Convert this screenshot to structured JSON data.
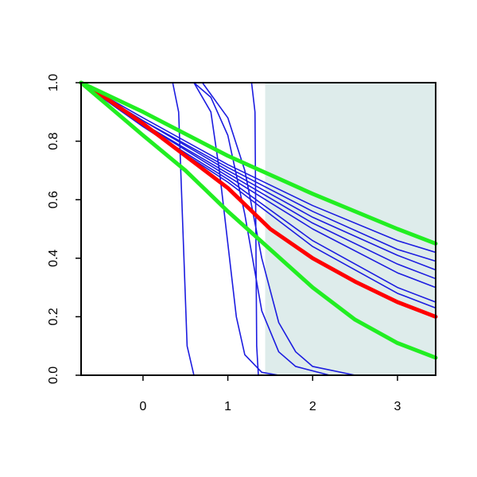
{
  "chart_data": {
    "type": "line",
    "xlim": [
      -0.73,
      3.45
    ],
    "ylim": [
      0,
      1
    ],
    "xticks": [
      0,
      1,
      2,
      3
    ],
    "yticks": [
      {
        "value": 0,
        "label": "0.0"
      },
      0.2,
      0.4,
      0.6,
      0.8,
      {
        "value": 1,
        "label": "1.0"
      }
    ],
    "shaded_xlim": [
      1.44,
      3.45
    ],
    "shade_color": "#deeceb",
    "series": [
      {
        "color": "#1c1ce0",
        "width": 1.6,
        "x": [
          -0.73,
          0,
          1,
          2,
          3,
          3.45
        ],
        "values": [
          1,
          0.88,
          0.72,
          0.58,
          0.46,
          0.42
        ]
      },
      {
        "color": "#1c1ce0",
        "width": 1.6,
        "x": [
          -0.73,
          0,
          1,
          2,
          3,
          3.45
        ],
        "values": [
          1,
          0.87,
          0.71,
          0.56,
          0.43,
          0.39
        ]
      },
      {
        "color": "#1c1ce0",
        "width": 1.6,
        "x": [
          -0.73,
          0,
          1,
          2,
          3,
          3.45
        ],
        "values": [
          1,
          0.87,
          0.7,
          0.54,
          0.41,
          0.36
        ]
      },
      {
        "color": "#1c1ce0",
        "width": 1.6,
        "x": [
          -0.73,
          0,
          1,
          2,
          3,
          3.45
        ],
        "values": [
          1,
          0.86,
          0.69,
          0.52,
          0.38,
          0.33
        ]
      },
      {
        "color": "#1c1ce0",
        "width": 1.6,
        "x": [
          -0.73,
          0,
          1,
          2,
          3,
          3.45
        ],
        "values": [
          1,
          0.86,
          0.68,
          0.5,
          0.35,
          0.3
        ]
      },
      {
        "color": "#1c1ce0",
        "width": 1.6,
        "x": [
          -0.73,
          0,
          1,
          2,
          3,
          3.45
        ],
        "values": [
          1,
          0.85,
          0.67,
          0.46,
          0.3,
          0.25
        ]
      },
      {
        "color": "#1c1ce0",
        "width": 1.6,
        "x": [
          -0.73,
          0,
          1,
          2,
          3,
          3.45
        ],
        "values": [
          1,
          0.85,
          0.66,
          0.44,
          0.28,
          0.23
        ]
      },
      {
        "color": "#1c1ce0",
        "width": 1.6,
        "x": [
          -0.73,
          0.35,
          0.42,
          0.47,
          0.52,
          0.6,
          3.45
        ],
        "values": [
          1,
          1,
          0.9,
          0.5,
          0.1,
          0,
          0
        ]
      },
      {
        "color": "#1c1ce0",
        "width": 1.6,
        "x": [
          -0.73,
          0.6,
          0.8,
          0.9,
          1.0,
          1.1,
          1.2,
          1.4,
          1.6,
          3.45
        ],
        "values": [
          1,
          1,
          0.9,
          0.7,
          0.45,
          0.2,
          0.07,
          0.01,
          0,
          0
        ]
      },
      {
        "color": "#1c1ce0",
        "width": 1.6,
        "x": [
          -0.73,
          0.6,
          0.8,
          1.0,
          1.2,
          1.4,
          1.6,
          1.8,
          2.2,
          3.45
        ],
        "values": [
          1,
          1,
          0.95,
          0.82,
          0.55,
          0.22,
          0.08,
          0.03,
          0,
          0
        ]
      },
      {
        "color": "#1c1ce0",
        "width": 1.6,
        "x": [
          -0.73,
          0.7,
          1.0,
          1.2,
          1.4,
          1.6,
          1.8,
          2.0,
          2.5,
          3.45
        ],
        "values": [
          1,
          1,
          0.88,
          0.7,
          0.4,
          0.18,
          0.08,
          0.03,
          0,
          0
        ]
      },
      {
        "color": "#1c1ce0",
        "width": 1.6,
        "x": [
          -0.73,
          1.28,
          1.32,
          1.34,
          1.36,
          3.45
        ],
        "values": [
          1,
          1,
          0.9,
          0.1,
          0,
          0
        ]
      },
      {
        "color": "#ff0000",
        "width": 5,
        "x": [
          -0.73,
          -0.5,
          0,
          0.5,
          1,
          1.5,
          2,
          2.5,
          3,
          3.45
        ],
        "values": [
          1,
          0.96,
          0.86,
          0.75,
          0.64,
          0.5,
          0.4,
          0.32,
          0.25,
          0.2
        ]
      },
      {
        "color": "#22ee22",
        "width": 5,
        "x": [
          -0.73,
          0,
          1,
          2,
          3,
          3.45
        ],
        "values": [
          1,
          0.9,
          0.75,
          0.62,
          0.5,
          0.45
        ]
      },
      {
        "color": "#22ee22",
        "width": 5,
        "x": [
          -0.73,
          0,
          0.5,
          1,
          1.5,
          2,
          2.5,
          3,
          3.45
        ],
        "values": [
          1,
          0.82,
          0.7,
          0.56,
          0.43,
          0.3,
          0.19,
          0.11,
          0.06
        ]
      }
    ]
  }
}
